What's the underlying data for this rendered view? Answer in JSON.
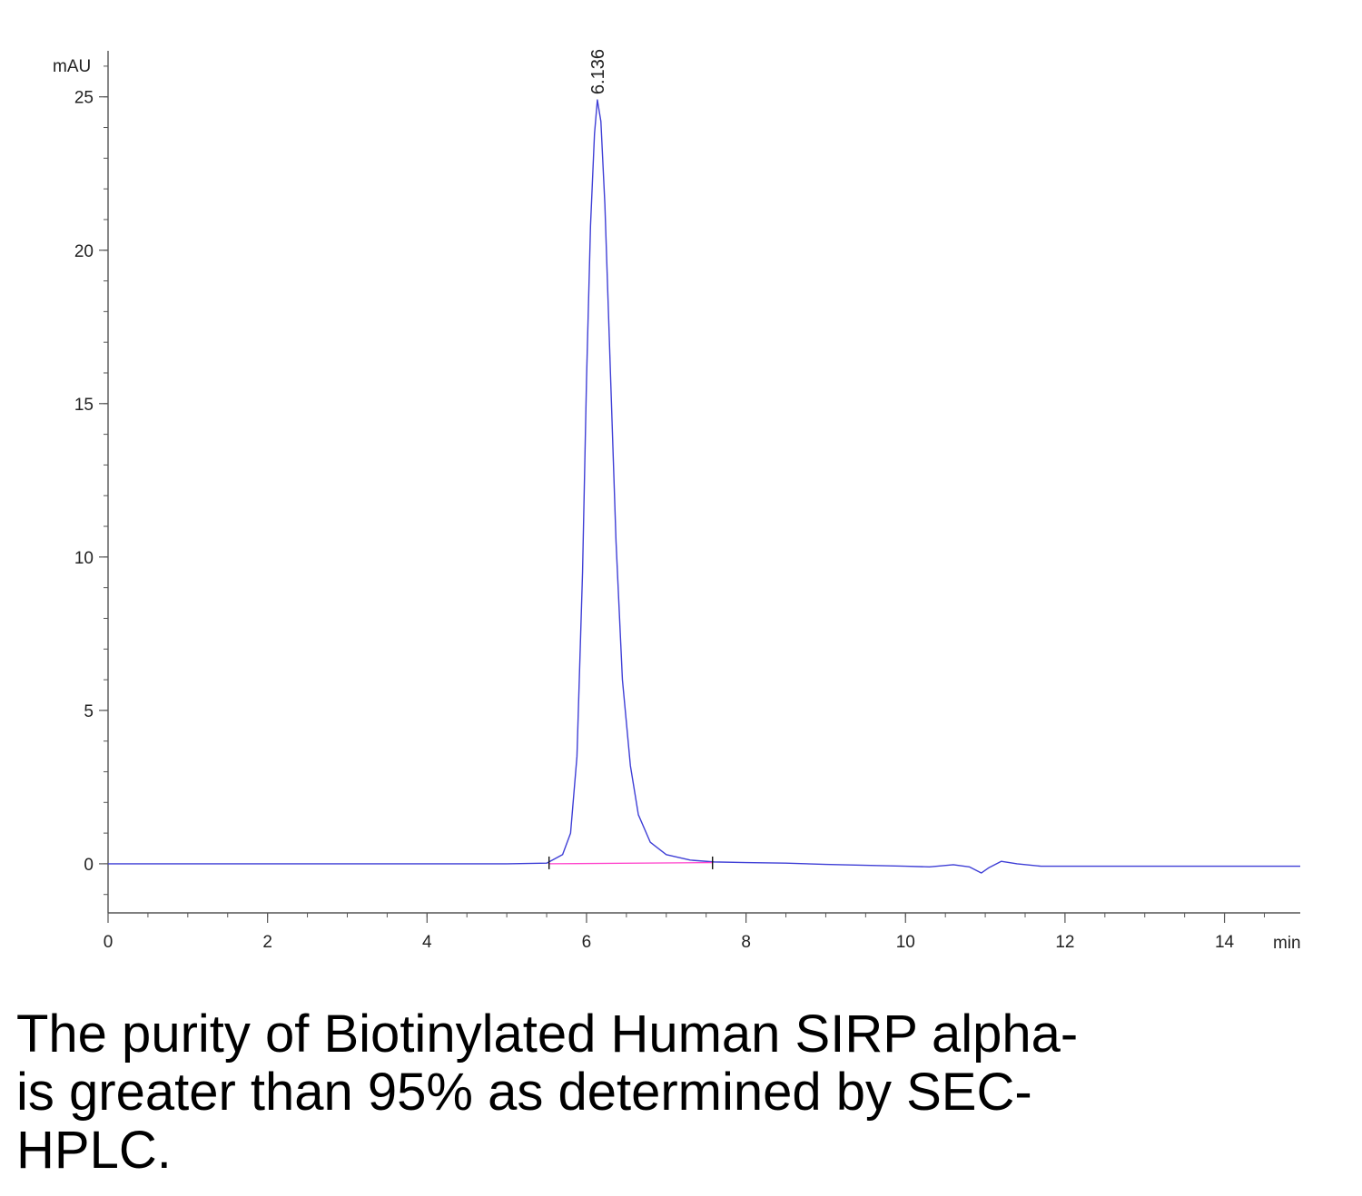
{
  "chart_data": {
    "type": "line",
    "xlabel": "min",
    "ylabel": "mAU",
    "xlim": [
      0,
      14.95
    ],
    "ylim": [
      -1.6,
      26.5
    ],
    "x_ticks": [
      0,
      2,
      4,
      6,
      8,
      10,
      12,
      14
    ],
    "y_ticks": [
      0,
      5,
      10,
      15,
      20,
      25
    ],
    "grid": false,
    "series": [
      {
        "color": "#3f3fd6",
        "x": [
          0,
          1,
          2,
          3,
          4,
          5,
          5.5,
          5.7,
          5.8,
          5.88,
          5.95,
          6.0,
          6.05,
          6.1,
          6.136,
          6.18,
          6.23,
          6.3,
          6.37,
          6.45,
          6.55,
          6.65,
          6.8,
          7.0,
          7.3,
          7.6,
          8.0,
          8.5,
          9.0,
          9.5,
          10.0,
          10.3,
          10.6,
          10.8,
          10.95,
          11.05,
          11.2,
          11.4,
          11.7,
          12.0,
          13.0,
          14.0,
          14.95
        ],
        "y": [
          0.0,
          0.0,
          0.0,
          0.0,
          0.0,
          0.0,
          0.02,
          0.3,
          1.0,
          3.5,
          9.5,
          15.8,
          20.8,
          23.8,
          24.9,
          24.2,
          21.5,
          16.0,
          10.5,
          6.0,
          3.2,
          1.6,
          0.7,
          0.3,
          0.12,
          0.06,
          0.04,
          0.02,
          -0.02,
          -0.05,
          -0.08,
          -0.1,
          -0.03,
          -0.1,
          -0.3,
          -0.12,
          0.08,
          0.0,
          -0.08,
          -0.08,
          -0.08,
          -0.08,
          -0.08
        ]
      },
      {
        "color": "#ff44cc",
        "x": [
          5.53,
          7.58
        ],
        "y": [
          0.0,
          0.04
        ]
      }
    ],
    "annotations": [
      {
        "text": "6.136",
        "x": 6.136,
        "y": 24.9
      }
    ],
    "integration_markers": [
      5.53,
      7.58
    ]
  },
  "caption": {
    "line1": "The purity of Biotinylated Human SIRP alpha-",
    "line2": "is greater than 95% as determined by SEC-",
    "line3": "HPLC."
  }
}
